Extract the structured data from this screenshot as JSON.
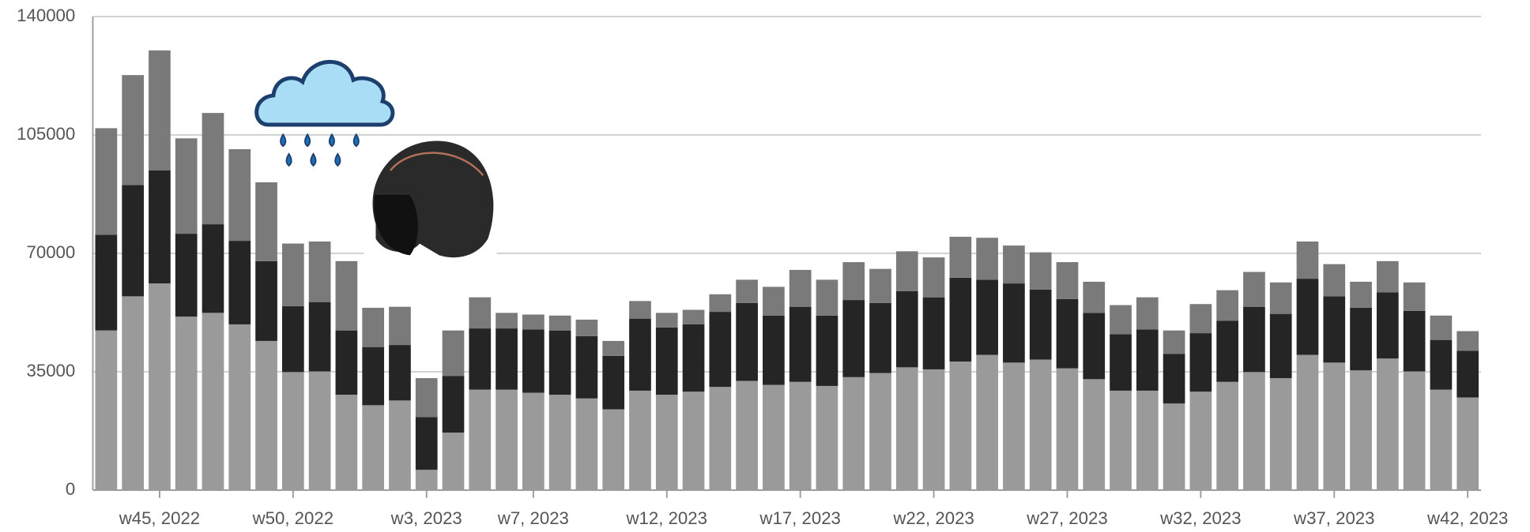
{
  "chart_data": {
    "type": "stacked_bar",
    "categories": [
      null,
      null,
      "w45, 2022",
      null,
      null,
      null,
      null,
      "w50, 2022",
      null,
      null,
      null,
      null,
      "w3, 2023",
      null,
      null,
      null,
      "w7, 2023",
      null,
      null,
      null,
      null,
      "w12, 2023",
      null,
      null,
      null,
      null,
      "w17, 2023",
      null,
      null,
      null,
      null,
      "w22, 2023",
      null,
      null,
      null,
      null,
      "w27, 2023",
      null,
      null,
      null,
      null,
      "w32, 2023",
      null,
      null,
      null,
      null,
      "w37, 2023",
      null,
      null,
      null,
      null,
      "w42, 2023"
    ],
    "series": [
      {
        "color": "#9a9a9a",
        "values": [
          47200,
          57300,
          61100,
          51300,
          52400,
          49000,
          44100,
          34900,
          35100,
          28200,
          25100,
          26500,
          6000,
          17000,
          29700,
          29700,
          28800,
          28200,
          27100,
          23900,
          29400,
          28200,
          29100,
          30500,
          32300,
          31100,
          32000,
          30800,
          33400,
          34600,
          36300,
          35700,
          38000,
          40000,
          37700,
          38600,
          36000,
          32800,
          29400,
          29400,
          25600,
          29100,
          32000,
          34900,
          33100,
          40000,
          37700,
          35400,
          38900,
          35100,
          29700,
          27400
        ]
      },
      {
        "color": "#252525",
        "values": [
          28300,
          32900,
          33400,
          24500,
          26200,
          24700,
          23600,
          19500,
          20500,
          19000,
          17200,
          16400,
          15600,
          16700,
          18100,
          18100,
          18700,
          19000,
          18400,
          15800,
          21300,
          19900,
          19900,
          22200,
          23000,
          20500,
          22200,
          20800,
          22800,
          20700,
          22500,
          21300,
          24800,
          22200,
          23400,
          20700,
          20500,
          19600,
          16700,
          18100,
          14700,
          17300,
          18100,
          19300,
          19000,
          22500,
          19600,
          18500,
          19600,
          17900,
          14700,
          13800
        ]
      },
      {
        "color": "#7a7a7a",
        "values": [
          31500,
          32500,
          35500,
          28200,
          32900,
          27100,
          23300,
          18500,
          17900,
          20500,
          11600,
          11300,
          11500,
          13500,
          9200,
          4600,
          4400,
          4400,
          4900,
          4400,
          5200,
          4300,
          4300,
          5200,
          6900,
          8500,
          10900,
          10600,
          11200,
          10100,
          11800,
          11800,
          12100,
          12400,
          11200,
          11000,
          10900,
          9200,
          8600,
          9500,
          6900,
          8600,
          9000,
          10300,
          9300,
          11000,
          9500,
          7700,
          9200,
          8400,
          7200,
          5800
        ]
      }
    ],
    "ylim": [
      0,
      140000
    ],
    "yticks": [
      0,
      35000,
      70000,
      105000,
      140000
    ],
    "grid": true
  }
}
